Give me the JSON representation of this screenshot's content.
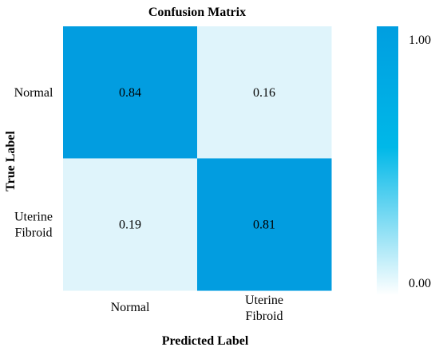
{
  "chart_data": {
    "type": "heatmap",
    "title": "Confusion Matrix",
    "xlabel": "Predicted Label",
    "ylabel": "True Label",
    "x_categories": [
      [
        "Normal"
      ],
      [
        "Uterine",
        "Fibroid"
      ]
    ],
    "y_categories": [
      [
        "Normal"
      ],
      [
        "Uterine",
        "Fibroid"
      ]
    ],
    "matrix": [
      [
        0.84,
        0.16
      ],
      [
        0.19,
        0.81
      ]
    ],
    "matrix_labels": [
      [
        "0.84",
        "0.16"
      ],
      [
        "0.19",
        "0.81"
      ]
    ],
    "colorbar": {
      "range": [
        0.0,
        1.0
      ],
      "tick_labels": [
        "0.00",
        "1.00"
      ],
      "colors": [
        "#ffffff",
        "#00b4e6",
        "#009ee0"
      ]
    },
    "grid": false
  }
}
